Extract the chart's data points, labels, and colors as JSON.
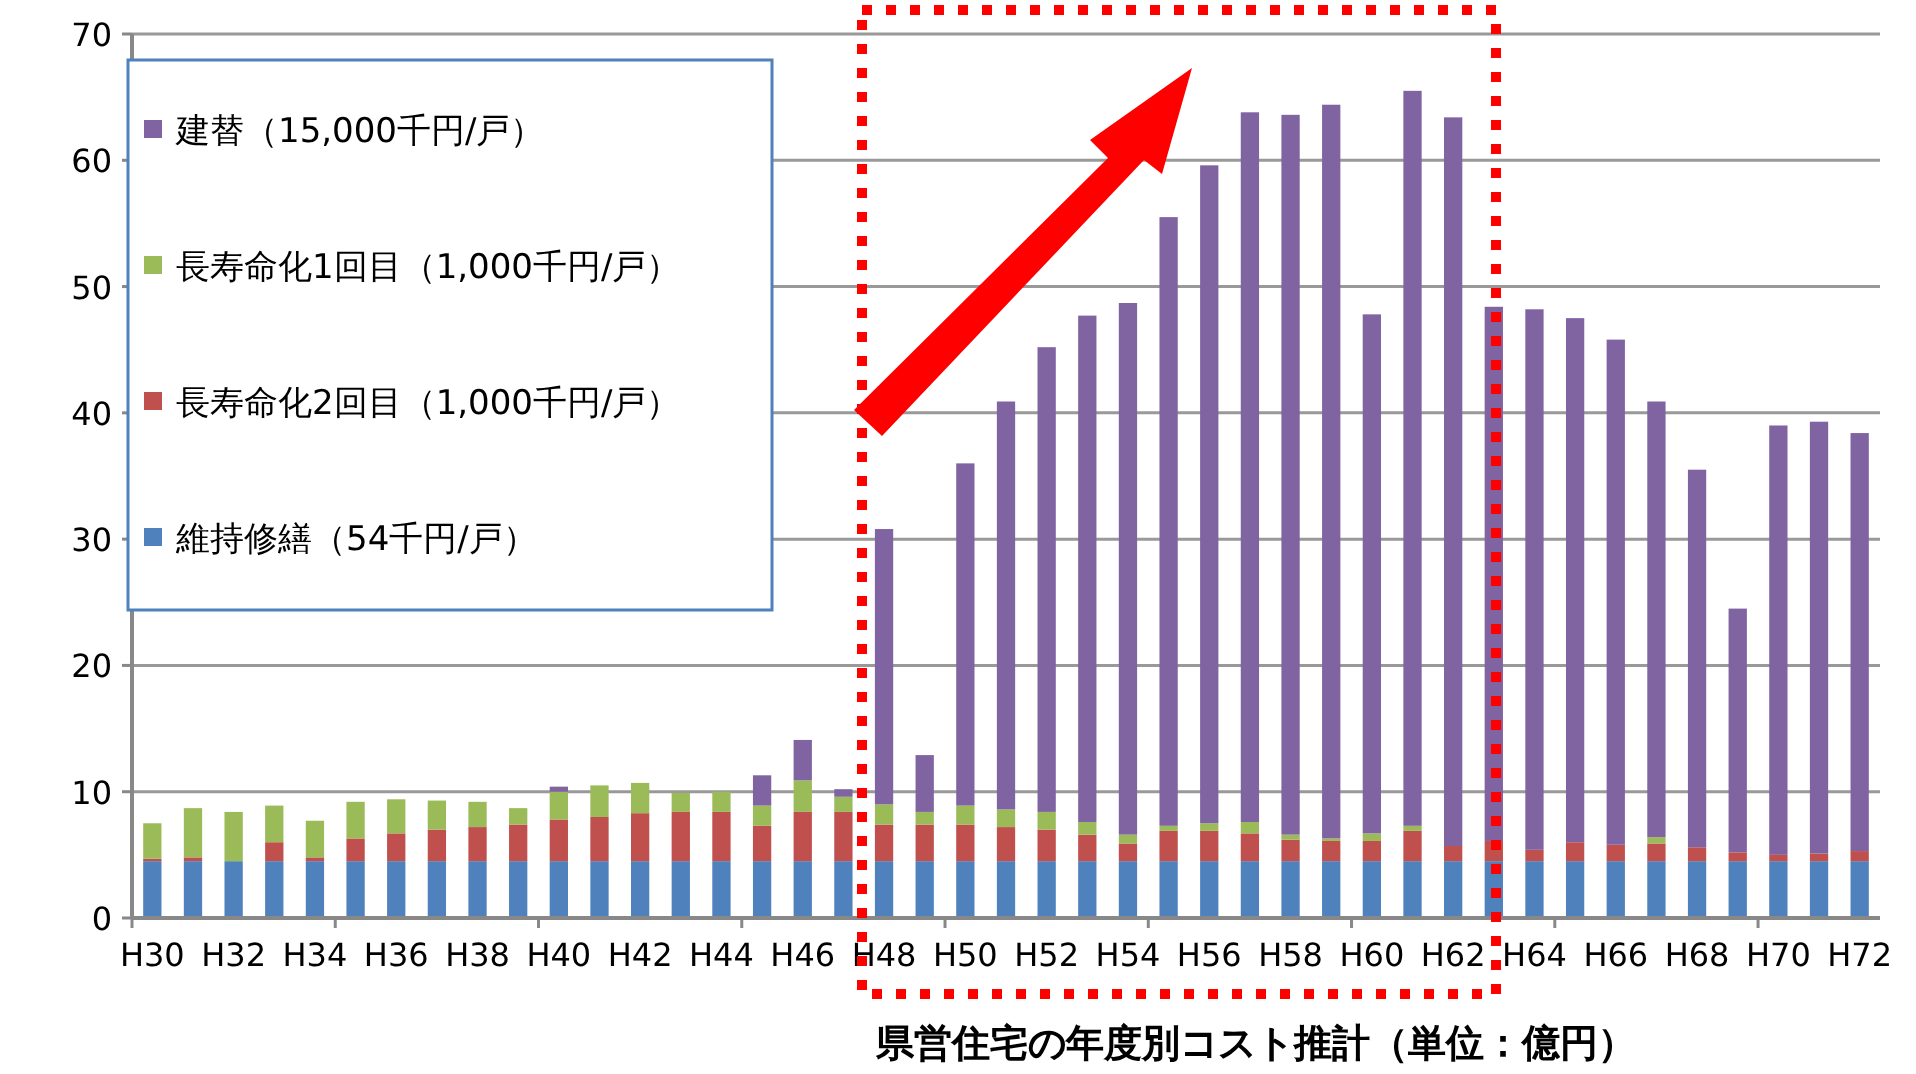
{
  "chart_data": {
    "type": "bar",
    "stacked": true,
    "title": "県営住宅の年度別コスト推計（単位：億円）",
    "categories": [
      "H30",
      null,
      "H32",
      null,
      "H34",
      null,
      "H36",
      null,
      "H38",
      null,
      "H40",
      null,
      "H42",
      null,
      "H44",
      null,
      "H46",
      null,
      "H48",
      null,
      "H50",
      null,
      "H52",
      null,
      "H54",
      null,
      "H56",
      null,
      "H58",
      null,
      "H60",
      null,
      "H62",
      null,
      "H64",
      null,
      "H66",
      null,
      "H68",
      null,
      "H70",
      null,
      "H72"
    ],
    "series": [
      {
        "name": "維持修繕（54千円/戸）",
        "color": "#4f81bd",
        "values": [
          4.5,
          4.5,
          4.5,
          4.5,
          4.5,
          4.5,
          4.5,
          4.5,
          4.5,
          4.5,
          4.5,
          4.5,
          4.5,
          4.5,
          4.5,
          4.5,
          4.5,
          4.5,
          4.5,
          4.5,
          4.5,
          4.5,
          4.5,
          4.5,
          4.5,
          4.5,
          4.5,
          4.5,
          4.5,
          4.5,
          4.5,
          4.5,
          4.5,
          4.5,
          4.5,
          4.5,
          4.5,
          4.5,
          4.5,
          4.5,
          4.5,
          4.5,
          4.5
        ]
      },
      {
        "name": "長寿命化2回目（1,000千円/戸）",
        "color": "#c0504d",
        "values": [
          0.2,
          0.3,
          0,
          1.5,
          0.3,
          1.8,
          2.2,
          2.5,
          2.7,
          2.9,
          3.3,
          3.5,
          3.8,
          3.9,
          3.9,
          2.8,
          3.9,
          3.9,
          2.9,
          2.9,
          2.9,
          2.7,
          2.5,
          2.1,
          1.4,
          2.4,
          2.4,
          2.2,
          1.7,
          1.6,
          1.6,
          2.4,
          1.2,
          1.6,
          0.9,
          1.5,
          1.3,
          1.4,
          1.1,
          0.7,
          0.5,
          0.6,
          0.8
        ]
      },
      {
        "name": "長寿命化1回目（1,000千円/戸）",
        "color": "#9bbb59",
        "values": [
          2.8,
          3.9,
          3.9,
          2.9,
          2.9,
          2.9,
          2.7,
          2.3,
          2.0,
          1.3,
          2.2,
          2.5,
          2.4,
          1.5,
          1.6,
          1.6,
          2.5,
          1.2,
          1.6,
          1.0,
          1.5,
          1.4,
          1.4,
          1.0,
          0.7,
          0.4,
          0.6,
          0.9,
          0.4,
          0.2,
          0.6,
          0.4,
          0,
          0,
          0,
          0,
          0,
          0.5,
          0,
          0,
          0,
          0,
          0
        ]
      },
      {
        "name": "建替（15,000千円/戸）",
        "color": "#8064a2",
        "values": [
          0,
          0,
          0,
          0,
          0,
          0,
          0,
          0,
          0,
          0,
          0.4,
          0,
          0,
          0,
          0,
          2.4,
          3.2,
          0.6,
          21.8,
          4.5,
          27.1,
          32.3,
          36.8,
          40.1,
          42.1,
          48.2,
          52.1,
          56.2,
          57.0,
          58.1,
          41.1,
          58.2,
          57.7,
          42.3,
          42.8,
          41.5,
          40.0,
          34.5,
          29.9,
          19.3,
          34.0,
          34.2,
          33.1
        ]
      }
    ],
    "ylim": [
      0,
      70
    ],
    "yticks": [
      0,
      10,
      20,
      30,
      40,
      50,
      60,
      70
    ],
    "grid": "y",
    "legend": "top left"
  }
}
